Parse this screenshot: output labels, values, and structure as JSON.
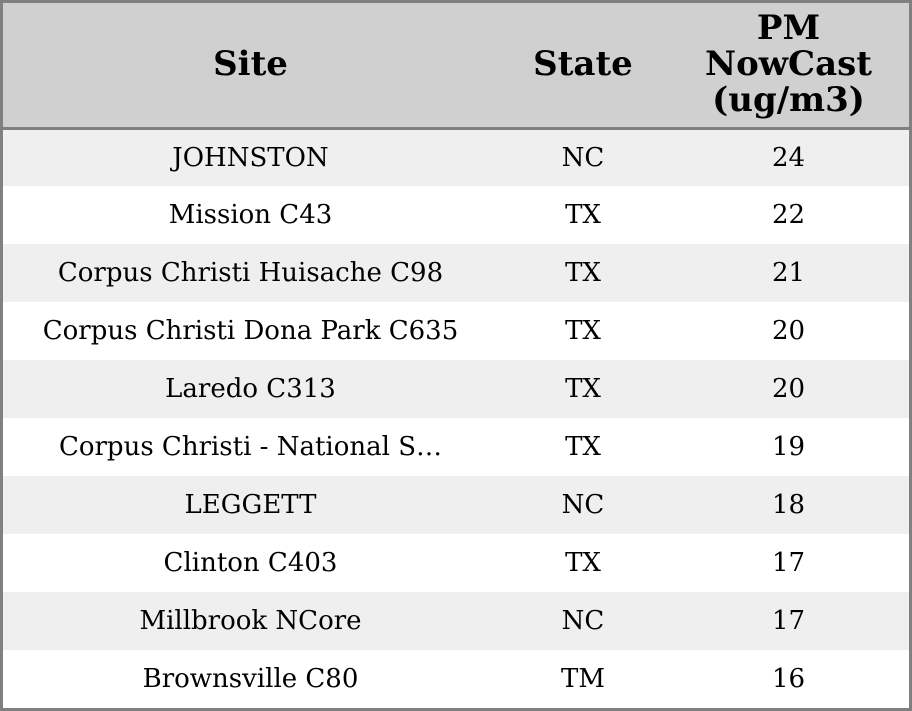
{
  "chart_data": {
    "type": "table",
    "columns": [
      "Site",
      "State",
      "PM NowCast (ug/m3)"
    ],
    "rows": [
      {
        "site": "JOHNSTON",
        "state": "NC",
        "pm": "24"
      },
      {
        "site": "Mission C43",
        "state": "TX",
        "pm": "22"
      },
      {
        "site": "Corpus Christi Huisache C98",
        "state": "TX",
        "pm": "21"
      },
      {
        "site": "Corpus Christi Dona Park C635",
        "state": "TX",
        "pm": "20"
      },
      {
        "site": "Laredo C313",
        "state": "TX",
        "pm": "20"
      },
      {
        "site": "Corpus Christi - National S…",
        "state": "TX",
        "pm": "19"
      },
      {
        "site": "LEGGETT",
        "state": "NC",
        "pm": "18"
      },
      {
        "site": "Clinton C403",
        "state": "TX",
        "pm": "17"
      },
      {
        "site": "Millbrook NCore",
        "state": "NC",
        "pm": "17"
      },
      {
        "site": "Brownsville C80",
        "state": "TM",
        "pm": "16"
      }
    ],
    "header_background": "#d0d0d0",
    "stripe_background": "#efefef",
    "border_color": "#808080"
  }
}
